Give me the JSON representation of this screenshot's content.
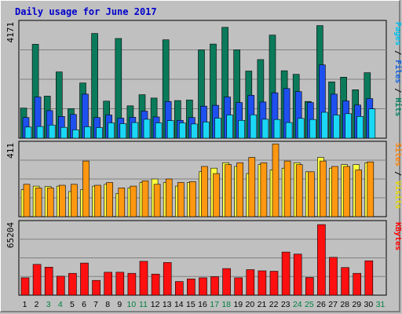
{
  "chart_data": {
    "type": "bar",
    "title": "Daily usage for June 2017",
    "days": [
      "1",
      "2",
      "3",
      "4",
      "5",
      "6",
      "7",
      "8",
      "9",
      "10",
      "11",
      "12",
      "13",
      "14",
      "15",
      "16",
      "17",
      "18",
      "19",
      "20",
      "21",
      "22",
      "23",
      "24",
      "25",
      "26",
      "27",
      "28",
      "29",
      "30",
      "31"
    ],
    "weekend_days": [
      "3",
      "4",
      "10",
      "11",
      "17",
      "18",
      "24",
      "25",
      "31"
    ],
    "panels": [
      {
        "id": "hits",
        "max_label": "4171",
        "ymax": 4171,
        "side_label": [
          {
            "text": "Pages",
            "color": "#00c0f0"
          },
          {
            "text": " / ",
            "color": "#000000"
          },
          {
            "text": "Files",
            "color": "#1060e0"
          },
          {
            "text": " / ",
            "color": "#000000"
          },
          {
            "text": "Hits",
            "color": "#008060"
          }
        ],
        "series": [
          {
            "name": "Hits",
            "color": "#0a7a5a",
            "values": [
              1080,
              3370,
              1510,
              2380,
              1060,
              1980,
              3760,
              1330,
              3580,
              1160,
              1560,
              1440,
              3530,
              1350,
              1370,
              3170,
              3380,
              3980,
              3170,
              2410,
              2820,
              3700,
              2420,
              2290,
              1320,
              4040,
              2020,
              2190,
              1740,
              2350,
              0
            ]
          },
          {
            "name": "Files",
            "color": "#1e50f0",
            "values": [
              740,
              1480,
              990,
              780,
              850,
              1580,
              740,
              830,
              720,
              750,
              970,
              760,
              1320,
              640,
              740,
              1150,
              1180,
              1480,
              1280,
              1540,
              1300,
              1630,
              1780,
              1670,
              1280,
              2630,
              1580,
              1340,
              1190,
              1420,
              0
            ]
          },
          {
            "name": "Pages",
            "color": "#1ad8f5",
            "values": [
              400,
              420,
              470,
              390,
              300,
              410,
              380,
              550,
              520,
              560,
              680,
              550,
              630,
              550,
              510,
              580,
              720,
              830,
              640,
              840,
              680,
              670,
              560,
              710,
              670,
              930,
              830,
              880,
              780,
              1050,
              0
            ]
          }
        ]
      },
      {
        "id": "visits",
        "max_label": "411",
        "ymax": 411,
        "side_label": [
          {
            "text": "Sites",
            "color": "#ff8000"
          },
          {
            "text": " / ",
            "color": "#000000"
          },
          {
            "text": "Visits",
            "color": "#e8d800"
          }
        ],
        "series": [
          {
            "name": "Visits",
            "color": "#ffff40",
            "values": [
              150,
              170,
              168,
              170,
              140,
              150,
              170,
              180,
              130,
              160,
              190,
              210,
              190,
              170,
              190,
              250,
              270,
              300,
              280,
              240,
              290,
              260,
              270,
              300,
              250,
              330,
              270,
              290,
              290,
              300,
              0
            ]
          },
          {
            "name": "Sites",
            "color": "#ff9810",
            "values": [
              180,
              160,
              160,
              175,
              180,
              310,
              175,
              190,
              160,
              170,
              200,
              180,
              210,
              190,
              195,
              280,
              240,
              290,
              300,
              330,
              300,
              405,
              310,
              290,
              250,
              310,
              280,
              280,
              260,
              305,
              0
            ]
          }
        ]
      },
      {
        "id": "kbytes",
        "max_label": "65204",
        "ymax": 65204,
        "side_label": [
          {
            "text": "KBytes",
            "color": "#ff0000"
          }
        ],
        "series": [
          {
            "name": "KBytes",
            "color": "#ff1010",
            "values": [
              15500,
              27500,
              25000,
              17000,
              19500,
              28700,
              13200,
              20500,
              20500,
              19500,
              30200,
              18800,
              29200,
              12200,
              14500,
              15500,
              16500,
              23800,
              15500,
              22800,
              21700,
              21400,
              38500,
              36700,
              15800,
              63000,
              33800,
              24700,
              19500,
              30700,
              0
            ]
          }
        ]
      }
    ]
  }
}
